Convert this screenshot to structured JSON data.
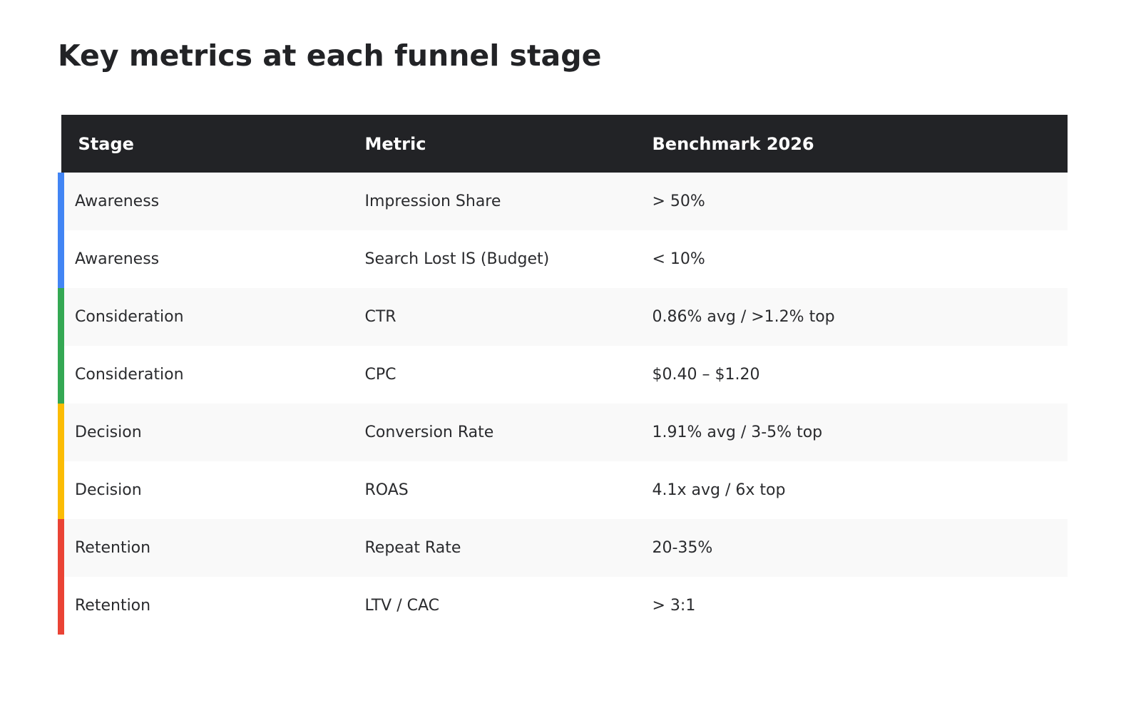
{
  "title": "Key metrics at each funnel stage",
  "table": {
    "headers": [
      "Stage",
      "Metric",
      "Benchmark 2026"
    ],
    "rows": [
      {
        "stage": "Awareness",
        "metric": "Impression Share",
        "benchmark": "> 50%",
        "accent": "#4285f4"
      },
      {
        "stage": "Awareness",
        "metric": "Search Lost IS (Budget)",
        "benchmark": "< 10%",
        "accent": "#4285f4"
      },
      {
        "stage": "Consideration",
        "metric": "CTR",
        "benchmark": "0.86% avg / >1.2% top",
        "accent": "#34a853"
      },
      {
        "stage": "Consideration",
        "metric": "CPC",
        "benchmark": "$0.40 – $1.20",
        "accent": "#34a853"
      },
      {
        "stage": "Decision",
        "metric": "Conversion Rate",
        "benchmark": "1.91% avg / 3-5% top",
        "accent": "#fbbc04"
      },
      {
        "stage": "Decision",
        "metric": "ROAS",
        "benchmark": "4.1x avg / 6x top",
        "accent": "#fbbc04"
      },
      {
        "stage": "Retention",
        "metric": "Repeat Rate",
        "benchmark": "20-35%",
        "accent": "#ea4335"
      },
      {
        "stage": "Retention",
        "metric": "LTV / CAC",
        "benchmark": "> 3:1",
        "accent": "#ea4335"
      }
    ]
  },
  "colors": {
    "header_bg": "#222326",
    "header_text": "#ffffff",
    "row_alt_bg": "#f9f9f9"
  }
}
